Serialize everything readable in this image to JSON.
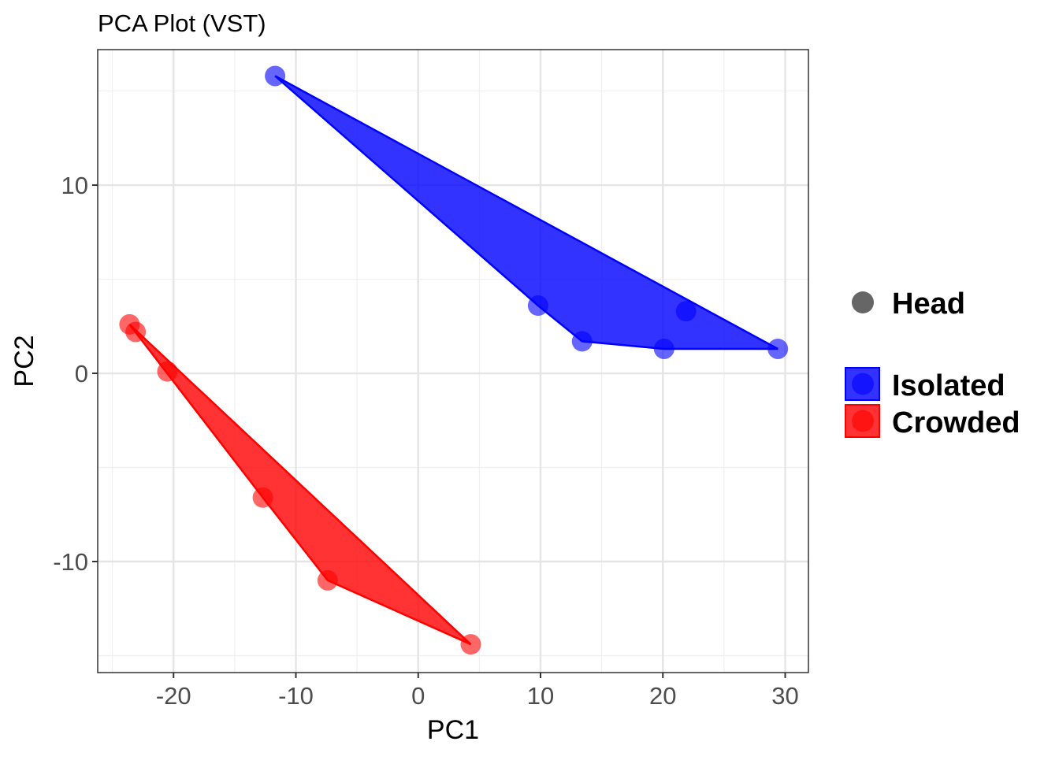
{
  "chart_data": {
    "type": "scatter",
    "title": "PCA Plot (VST)",
    "xlabel": "PC1",
    "ylabel": "PC2",
    "xlim": [
      -26.2,
      31.9
    ],
    "ylim": [
      -15.9,
      17.2
    ],
    "xticks": [
      -20,
      -10,
      0,
      10,
      20,
      30
    ],
    "yticks": [
      -10,
      0,
      10
    ],
    "grid": true,
    "legend_position": "right",
    "shape_legend": {
      "label": "Head",
      "color": "#666666"
    },
    "series": [
      {
        "name": "Isolated",
        "color": "#0000FF",
        "points": [
          [
            -11.7,
            15.8
          ],
          [
            9.8,
            3.6
          ],
          [
            13.4,
            1.7
          ],
          [
            20.1,
            1.3
          ],
          [
            21.9,
            3.3
          ],
          [
            29.4,
            1.3
          ]
        ]
      },
      {
        "name": "Crowded",
        "color": "#FF0000",
        "points": [
          [
            -23.6,
            2.6
          ],
          [
            -23.1,
            2.2
          ],
          [
            -20.5,
            0.1
          ],
          [
            -12.7,
            -6.6
          ],
          [
            -7.4,
            -11.0
          ],
          [
            4.3,
            -14.4
          ]
        ]
      }
    ]
  }
}
